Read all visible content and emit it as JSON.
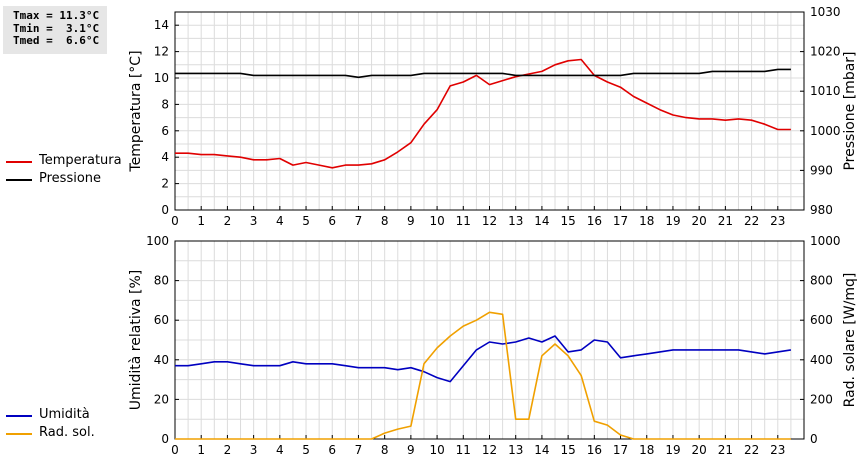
{
  "stats": {
    "tmax": "Tmax = 11.3°C",
    "tmin": "Tmin =  3.1°C",
    "tmed": "Tmed =  6.6°C"
  },
  "legend_top": [
    {
      "label": "Temperatura",
      "color": "#e00000"
    },
    {
      "label": "Pressione",
      "color": "#000000"
    }
  ],
  "legend_bottom": [
    {
      "label": "Umidità",
      "color": "#0000c0"
    },
    {
      "label": "Rad. sol.",
      "color": "#f0a000"
    }
  ],
  "chart_data": [
    {
      "type": "line",
      "xlabel": "",
      "ylabel_left": "Temperatura [°C]",
      "ylabel_right": "Pressione [mbar]",
      "x_ticks": [
        0,
        1,
        2,
        3,
        4,
        5,
        6,
        7,
        8,
        9,
        10,
        11,
        12,
        13,
        14,
        15,
        16,
        17,
        18,
        19,
        20,
        21,
        22,
        23
      ],
      "xlim": [
        0,
        24
      ],
      "ylim_left": [
        0,
        15
      ],
      "y_ticks_left": [
        0,
        2,
        4,
        6,
        8,
        10,
        12,
        14
      ],
      "ylim_right": [
        980,
        1030
      ],
      "y_ticks_right": [
        980,
        990,
        1000,
        1010,
        1020,
        1030
      ],
      "grid": true,
      "series": [
        {
          "name": "Temperatura",
          "axis": "left",
          "color": "#e00000",
          "x": [
            0,
            0.5,
            1,
            1.5,
            2,
            2.5,
            3,
            3.5,
            4,
            4.5,
            5,
            5.5,
            6,
            6.5,
            7,
            7.5,
            8,
            8.5,
            9,
            9.5,
            10,
            10.5,
            11,
            11.5,
            12,
            12.5,
            13,
            13.5,
            14,
            14.5,
            15,
            15.5,
            16,
            16.5,
            17,
            17.5,
            18,
            18.5,
            19,
            19.5,
            20,
            20.5,
            21,
            21.5,
            22,
            22.5,
            23,
            23.5
          ],
          "y": [
            4.3,
            4.3,
            4.2,
            4.2,
            4.1,
            4.0,
            3.8,
            3.8,
            3.9,
            3.4,
            3.6,
            3.4,
            3.2,
            3.4,
            3.4,
            3.5,
            3.8,
            4.4,
            5.1,
            6.5,
            7.6,
            9.4,
            9.7,
            10.2,
            9.5,
            9.8,
            10.1,
            10.3,
            10.5,
            11.0,
            11.3,
            11.4,
            10.2,
            9.7,
            9.3,
            8.6,
            8.1,
            7.6,
            7.2,
            7.0,
            6.9,
            6.9,
            6.8,
            6.9,
            6.8,
            6.5,
            6.1,
            6.1
          ]
        },
        {
          "name": "Pressione",
          "axis": "right",
          "color": "#000000",
          "x": [
            0,
            2.5,
            3,
            6.5,
            7,
            7.5,
            9,
            9.5,
            12.5,
            13,
            16,
            17,
            17.5,
            20,
            20.5,
            22.5,
            23,
            23.5
          ],
          "y": [
            1014.5,
            1014.5,
            1014,
            1014,
            1013.5,
            1014,
            1014,
            1014.5,
            1014.5,
            1014,
            1014,
            1014,
            1014.5,
            1014.5,
            1015,
            1015,
            1015.5,
            1015.5
          ]
        }
      ]
    },
    {
      "type": "line",
      "xlabel": "",
      "ylabel_left": "Umidità relativa [%]",
      "ylabel_right": "Rad. solare [W/mq]",
      "x_ticks": [
        0,
        1,
        2,
        3,
        4,
        5,
        6,
        7,
        8,
        9,
        10,
        11,
        12,
        13,
        14,
        15,
        16,
        17,
        18,
        19,
        20,
        21,
        22,
        23
      ],
      "xlim": [
        0,
        24
      ],
      "ylim_left": [
        0,
        100
      ],
      "y_ticks_left": [
        0,
        20,
        40,
        60,
        80,
        100
      ],
      "ylim_right": [
        0,
        1000
      ],
      "y_ticks_right": [
        0,
        200,
        400,
        600,
        800,
        1000
      ],
      "grid": true,
      "series": [
        {
          "name": "Umidità",
          "axis": "left",
          "color": "#0000c0",
          "x": [
            0,
            0.5,
            1,
            1.5,
            2,
            2.5,
            3,
            3.5,
            4,
            4.5,
            5,
            5.5,
            6,
            6.5,
            7,
            7.5,
            8,
            8.5,
            9,
            9.5,
            10,
            10.5,
            11,
            11.5,
            12,
            12.5,
            13,
            13.5,
            14,
            14.5,
            15,
            15.5,
            16,
            16.5,
            17,
            17.5,
            18,
            18.5,
            19,
            19.5,
            20,
            20.5,
            21,
            21.5,
            22,
            22.5,
            23,
            23.5
          ],
          "y": [
            37,
            37,
            38,
            39,
            39,
            38,
            37,
            37,
            37,
            39,
            38,
            38,
            38,
            37,
            36,
            36,
            36,
            35,
            36,
            34,
            31,
            29,
            37,
            45,
            49,
            48,
            49,
            51,
            49,
            52,
            44,
            45,
            50,
            49,
            41,
            42,
            43,
            44,
            45,
            45,
            45,
            45,
            45,
            45,
            44,
            43,
            44,
            45
          ]
        },
        {
          "name": "Rad. sol.",
          "axis": "right",
          "color": "#f0a000",
          "x": [
            0,
            7.5,
            8,
            8.5,
            9,
            9.5,
            10,
            10.5,
            11,
            11.5,
            12,
            12.5,
            13,
            13.5,
            14,
            14.5,
            15,
            15.5,
            16,
            16.5,
            17,
            17.5,
            23.5
          ],
          "y": [
            0,
            0,
            30,
            50,
            65,
            380,
            460,
            520,
            570,
            600,
            640,
            630,
            100,
            100,
            420,
            480,
            420,
            320,
            90,
            70,
            20,
            0,
            0
          ]
        }
      ]
    }
  ]
}
